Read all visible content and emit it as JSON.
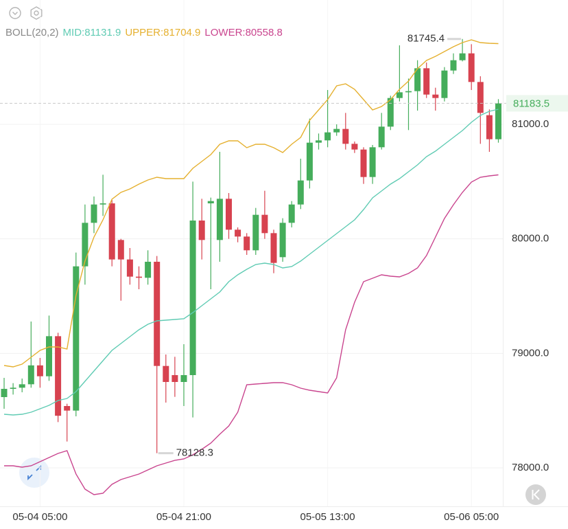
{
  "chart_data": {
    "type": "candlestick",
    "indicator": "BOLL(20,2)",
    "categories": [
      null,
      null,
      null,
      null,
      "05-04 05:00",
      null,
      null,
      null,
      null,
      null,
      null,
      null,
      null,
      null,
      null,
      null,
      null,
      null,
      null,
      null,
      "05-04 21:00",
      null,
      null,
      null,
      null,
      null,
      null,
      null,
      null,
      null,
      null,
      null,
      null,
      null,
      null,
      null,
      "05-05 13:00",
      null,
      null,
      null,
      null,
      null,
      null,
      null,
      null,
      null,
      null,
      null,
      null,
      null,
      null,
      null,
      "05-06 05:00",
      null,
      null,
      null
    ],
    "open": [
      78618,
      78690,
      78700,
      78730,
      78895,
      78800,
      79150,
      78540,
      78500,
      79760,
      80140,
      80300,
      80310,
      79990,
      79820,
      79670,
      79660,
      79800,
      78890,
      78810,
      78750,
      78810,
      80160,
      80310,
      79990,
      80350,
      80080,
      80020,
      79900,
      80210,
      80050,
      79840,
      80140,
      80300,
      80510,
      80840,
      80860,
      80930,
      80960,
      80830,
      80780,
      80540,
      80800,
      80980,
      81230,
      81280,
      81290,
      81490,
      81260,
      81230,
      81470,
      81560,
      81620,
      81370,
      81080,
      80870
    ],
    "high": [
      78786,
      78740,
      78780,
      79278,
      78960,
      79330,
      79180,
      78560,
      79880,
      80300,
      80370,
      80560,
      80340,
      80000,
      79920,
      79760,
      79900,
      79850,
      78990,
      78970,
      79080,
      80500,
      80350,
      80360,
      80760,
      80400,
      80100,
      80050,
      80270,
      80420,
      80080,
      80180,
      80330,
      80700,
      81050,
      80920,
      81300,
      81000,
      81100,
      80850,
      80800,
      80820,
      81100,
      81250,
      81690,
      81400,
      81560,
      81540,
      81320,
      81500,
      81620,
      81745.4,
      81700,
      81420,
      81130,
      81220
    ],
    "low": [
      78516,
      78640,
      78660,
      78700,
      78700,
      78760,
      78400,
      78230,
      78450,
      79600,
      80050,
      80200,
      79760,
      79460,
      79600,
      79560,
      79600,
      78128.3,
      78570,
      78620,
      78540,
      78440,
      79820,
      79560,
      79800,
      80000,
      79970,
      79860,
      79860,
      80000,
      79700,
      79800,
      80100,
      80260,
      80440,
      80780,
      80800,
      80900,
      80780,
      80750,
      80480,
      80480,
      80780,
      80950,
      81200,
      80950,
      81120,
      81230,
      81120,
      81200,
      81440,
      81550,
      81300,
      80830,
      80760,
      80840
    ],
    "close": [
      78690,
      78700,
      78730,
      78895,
      78800,
      79150,
      78455,
      78500,
      79760,
      80140,
      80300,
      80310,
      79820,
      79820,
      79670,
      79660,
      79800,
      78890,
      78750,
      78750,
      78810,
      80160,
      79990,
      80330,
      80350,
      80080,
      80020,
      79900,
      80210,
      80050,
      79790,
      80140,
      80300,
      80510,
      80840,
      80860,
      80930,
      80960,
      80830,
      80780,
      80540,
      80800,
      80980,
      81230,
      81280,
      81290,
      81490,
      81260,
      81230,
      81470,
      81560,
      81620,
      81370,
      81100,
      80870,
      81183.5
    ],
    "up_color": "#45ad5b",
    "down_color": "#d7424f",
    "series": [
      {
        "name": "MID:81131.9",
        "color": "#5fcbb3",
        "values": [
          78468,
          78462,
          78468,
          78486,
          78516,
          78546,
          78588,
          78606,
          78666,
          78756,
          78846,
          78936,
          79026,
          79086,
          79146,
          79206,
          79254,
          79284,
          79290,
          79296,
          79302,
          79356,
          79416,
          79476,
          79536,
          79626,
          79686,
          79734,
          79776,
          79788,
          79776,
          79746,
          79758,
          79806,
          79866,
          79926,
          79986,
          80046,
          80106,
          80166,
          80256,
          80358,
          80418,
          80478,
          80526,
          80586,
          80646,
          80718,
          80766,
          80826,
          80886,
          80946,
          81018,
          81078,
          81114,
          81131.9
        ]
      },
      {
        "name": "UPPER:81704.9",
        "color": "#e5b02f",
        "values": [
          78894,
          78882,
          78906,
          78966,
          79026,
          79056,
          79056,
          79038,
          79506,
          79806,
          80016,
          80166,
          80346,
          80406,
          80436,
          80478,
          80514,
          80538,
          80526,
          80526,
          80526,
          80616,
          80676,
          80736,
          80826,
          80856,
          80856,
          80796,
          80826,
          80826,
          80796,
          80754,
          80826,
          80886,
          81036,
          81126,
          81216,
          81336,
          81354,
          81306,
          81216,
          81126,
          81156,
          81216,
          81306,
          81378,
          81486,
          81558,
          81594,
          81636,
          81678,
          81714,
          81738,
          81714,
          81708,
          81704.9
        ]
      },
      {
        "name": "LOWER:80558.8",
        "color": "#c9448e",
        "values": [
          78018,
          78018,
          78006,
          78018,
          78054,
          78090,
          78126,
          78150,
          77946,
          77814,
          77766,
          77778,
          77856,
          77898,
          77922,
          77946,
          77982,
          78018,
          78042,
          78066,
          78078,
          78114,
          78162,
          78216,
          78294,
          78366,
          78486,
          78726,
          78732,
          78738,
          78744,
          78744,
          78726,
          78696,
          78678,
          78666,
          78654,
          78786,
          79206,
          79446,
          79626,
          79656,
          79686,
          79674,
          79668,
          79698,
          79746,
          79854,
          80016,
          80178,
          80298,
          80406,
          80496,
          80538,
          80550,
          80558.8
        ]
      }
    ],
    "ylim": [
      77676,
      82086
    ],
    "yticks": [
      {
        "value": 78000,
        "label": "78000.0"
      },
      {
        "value": 79000,
        "label": "79000.0"
      },
      {
        "value": 80000,
        "label": "80000.0"
      },
      {
        "value": 81000,
        "label": "81000.0"
      }
    ],
    "grid": true
  }
}
